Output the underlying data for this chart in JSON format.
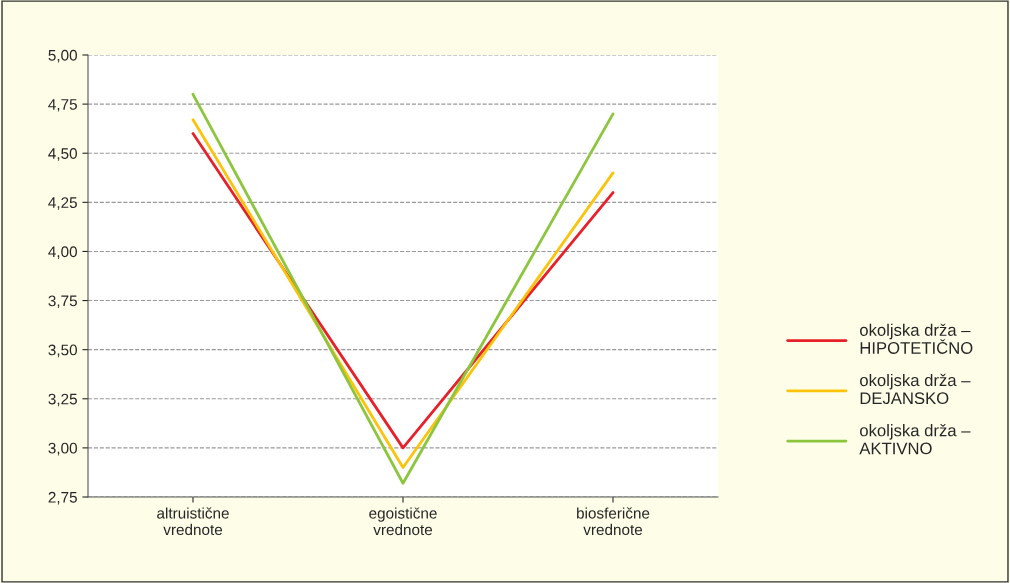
{
  "chart_data": {
    "type": "line",
    "categories": [
      "altruistične\nvrednote",
      "egoistične\nvrednote",
      "biosferične\nvrednote"
    ],
    "series": [
      {
        "name": "okoljska drža –\nHIPOTETIČNO",
        "color": "#e8202a",
        "values": [
          4.6,
          3.0,
          4.3
        ]
      },
      {
        "name": "okoljska drža –\nDEJANSKO",
        "color": "#fcc30b",
        "values": [
          4.67,
          2.9,
          4.4
        ]
      },
      {
        "name": "okoljska drža –\nAKTIVNO",
        "color": "#8cc63e",
        "values": [
          4.8,
          2.82,
          4.7
        ]
      }
    ],
    "ylim": [
      2.75,
      5.0
    ],
    "yticks": [
      {
        "value": 2.75,
        "label": "2,75"
      },
      {
        "value": 3.0,
        "label": "3,00"
      },
      {
        "value": 3.25,
        "label": "3,25"
      },
      {
        "value": 3.5,
        "label": "3,50"
      },
      {
        "value": 3.75,
        "label": "3,75"
      },
      {
        "value": 4.0,
        "label": "4,00"
      },
      {
        "value": 4.25,
        "label": "4,25"
      },
      {
        "value": 4.5,
        "label": "4,50"
      },
      {
        "value": 4.75,
        "label": "4,75"
      },
      {
        "value": 5.0,
        "label": "5,00"
      }
    ],
    "grid": "y",
    "legend": "right",
    "marker": "none",
    "line_style": "solid"
  }
}
